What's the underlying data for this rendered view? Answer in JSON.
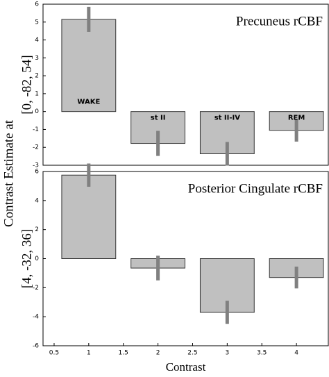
{
  "shared_ylabel": "Contrast Estimate at",
  "chart_data": [
    {
      "type": "bar",
      "title": "Precuneus rCBF",
      "ylabel": "[0, -82, 54]",
      "x": [
        1,
        2,
        3,
        4
      ],
      "values": [
        5.15,
        -1.78,
        -2.36,
        -1.05
      ],
      "errors": [
        0.7,
        0.7,
        0.66,
        0.63
      ],
      "bar_labels": [
        "WAKE",
        "st II",
        "st II-IV",
        "REM"
      ],
      "color": "#c0c0c0",
      "error_color": "#808080",
      "xlim": [
        0.34,
        4.46
      ],
      "ylim": [
        -3,
        6
      ],
      "yticks": [
        -3,
        -2,
        -1,
        0,
        1,
        2,
        3,
        4,
        5,
        6
      ]
    },
    {
      "type": "bar",
      "title": "Posterior Cingulate rCBF",
      "ylabel": "[4, -32, 36]",
      "xlabel": "Contrast",
      "x": [
        1,
        2,
        3,
        4
      ],
      "values": [
        5.75,
        -0.65,
        -3.7,
        -1.3
      ],
      "errors": [
        0.8,
        0.85,
        0.8,
        0.75
      ],
      "color": "#c0c0c0",
      "error_color": "#808080",
      "xlim": [
        0.34,
        4.46
      ],
      "ylim": [
        -6,
        6
      ],
      "yticks": [
        -6,
        -4,
        -2,
        0,
        2,
        4,
        6
      ],
      "xticks": [
        0.5,
        1,
        1.5,
        2,
        2.5,
        3,
        3.5,
        4
      ]
    }
  ]
}
